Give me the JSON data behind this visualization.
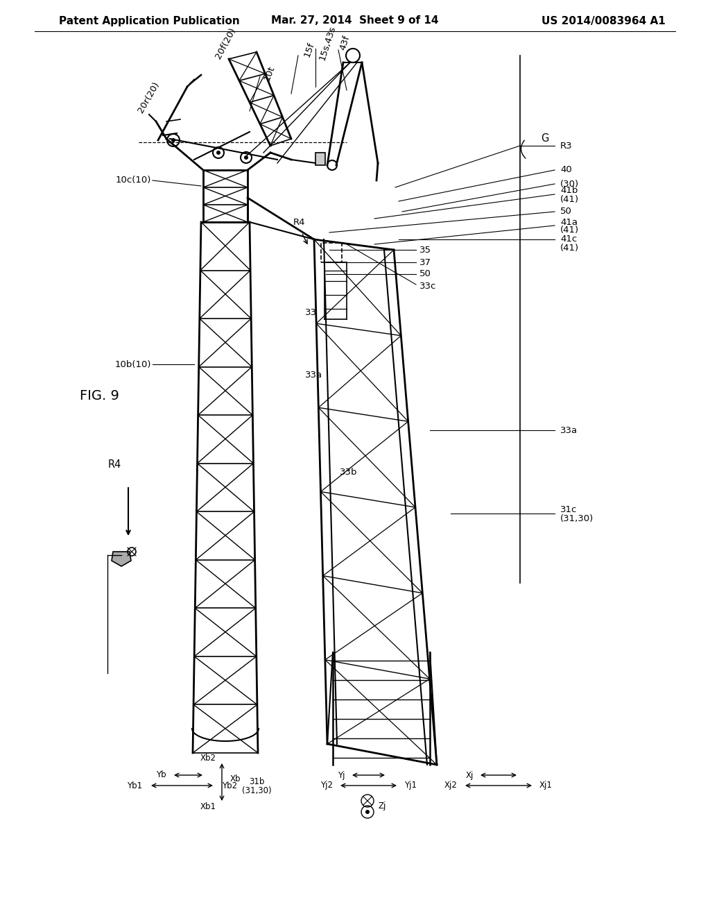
{
  "page_title_left": "Patent Application Publication",
  "page_title_center": "Mar. 27, 2014  Sheet 9 of 14",
  "page_title_right": "US 2014/0083964 A1",
  "fig_label": "FIG. 9",
  "background_color": "#ffffff",
  "line_color": "#000000",
  "text_color": "#000000",
  "header_fontsize": 11,
  "fig_label_fontsize": 14,
  "annotation_fontsize": 9.5
}
